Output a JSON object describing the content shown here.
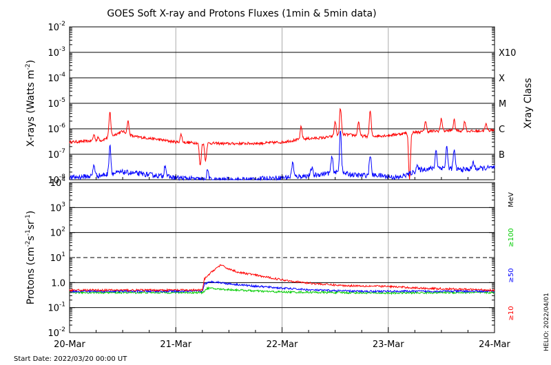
{
  "chart_data": [
    {
      "type": "line",
      "title": "GOES Soft X-ray and Protons Fluxes   (1min & 5min data)",
      "ylabel": "X-rays (Watts m-2)",
      "yscale": "log",
      "ylim": [
        1e-08,
        0.01
      ],
      "yticks": [
        {
          "base": "10",
          "exp": "-2"
        },
        {
          "base": "10",
          "exp": "-3"
        },
        {
          "base": "10",
          "exp": "-4"
        },
        {
          "base": "10",
          "exp": "-5"
        },
        {
          "base": "10",
          "exp": "-6"
        },
        {
          "base": "10",
          "exp": "-7"
        },
        {
          "base": "10",
          "exp": "-8"
        }
      ],
      "right_axis_label": "Xray Class",
      "right_classes": [
        {
          "label": "X10",
          "at": 0.001
        },
        {
          "label": "X",
          "at": 0.0001
        },
        {
          "label": "M",
          "at": 1e-05
        },
        {
          "label": "C",
          "at": 1e-06
        },
        {
          "label": "B",
          "at": 1e-07
        }
      ],
      "series": [
        {
          "color": "#ff0000",
          "baseline": [
            [
              0.0,
              3e-07
            ],
            [
              0.3,
              3.5e-07
            ],
            [
              0.5,
              8e-07
            ],
            [
              0.6,
              5e-07
            ],
            [
              0.8,
              4e-07
            ],
            [
              1.0,
              3e-07
            ],
            [
              1.2,
              2.8e-07
            ],
            [
              1.5,
              2.6e-07
            ],
            [
              1.8,
              2.7e-07
            ],
            [
              2.0,
              3e-07
            ],
            [
              2.2,
              4e-07
            ],
            [
              2.4,
              4.5e-07
            ],
            [
              2.6,
              6e-07
            ],
            [
              2.8,
              5e-07
            ],
            [
              3.0,
              5.5e-07
            ],
            [
              3.2,
              7e-07
            ],
            [
              3.4,
              8e-07
            ],
            [
              3.6,
              8.5e-07
            ],
            [
              3.8,
              8e-07
            ],
            [
              4.0,
              9e-07
            ]
          ],
          "peaks": [
            [
              0.23,
              6e-07
            ],
            [
              0.27,
              4.5e-07
            ],
            [
              0.38,
              4.5e-06
            ],
            [
              0.55,
              2e-06
            ],
            [
              1.05,
              6e-07
            ],
            [
              1.23,
              3.5e-08
            ],
            [
              1.28,
              5.5e-08
            ],
            [
              2.18,
              1.2e-06
            ],
            [
              2.5,
              2e-06
            ],
            [
              2.55,
              6.5e-06
            ],
            [
              2.72,
              2e-06
            ],
            [
              2.83,
              5e-06
            ],
            [
              3.2,
              1e-08
            ],
            [
              3.35,
              2e-06
            ],
            [
              3.5,
              2.5e-06
            ],
            [
              3.62,
              2.2e-06
            ],
            [
              3.72,
              2e-06
            ],
            [
              3.92,
              1.5e-06
            ]
          ]
        },
        {
          "color": "#0000ff",
          "baseline": [
            [
              0.0,
              1.2e-08
            ],
            [
              0.3,
              1.5e-08
            ],
            [
              0.5,
              2e-08
            ],
            [
              0.8,
              1.5e-08
            ],
            [
              1.0,
              1.2e-08
            ],
            [
              1.3,
              1e-08
            ],
            [
              1.6,
              1e-08
            ],
            [
              2.0,
              1.2e-08
            ],
            [
              2.3,
              1.5e-08
            ],
            [
              2.5,
              2e-08
            ],
            [
              2.7,
              1.5e-08
            ],
            [
              2.9,
              1.5e-08
            ],
            [
              3.1,
              1.2e-08
            ],
            [
              3.3,
              2.5e-08
            ],
            [
              3.5,
              3e-08
            ],
            [
              3.7,
              2.5e-08
            ],
            [
              4.0,
              3e-08
            ]
          ],
          "peaks": [
            [
              0.23,
              4e-08
            ],
            [
              0.38,
              2.5e-07
            ],
            [
              0.9,
              4e-08
            ],
            [
              1.3,
              2.5e-08
            ],
            [
              2.1,
              5e-08
            ],
            [
              2.28,
              3e-08
            ],
            [
              2.47,
              8e-08
            ],
            [
              2.55,
              1e-06
            ],
            [
              2.83,
              1e-07
            ],
            [
              3.27,
              3.5e-08
            ],
            [
              3.45,
              1.5e-07
            ],
            [
              3.55,
              2e-07
            ],
            [
              3.62,
              1.5e-07
            ],
            [
              3.8,
              5e-08
            ]
          ]
        }
      ]
    },
    {
      "type": "line",
      "ylabel": "Protons (cm-2s-1sr-1)",
      "yscale": "log",
      "ylim": [
        0.01,
        10000
      ],
      "yticks": [
        {
          "base": "10",
          "exp": "4"
        },
        {
          "base": "10",
          "exp": "3"
        },
        {
          "base": "10",
          "exp": "2"
        },
        {
          "base": "10",
          "exp": "1"
        },
        {
          "base": "1.0",
          "exp": ""
        },
        {
          "base": "10",
          "exp": "-1"
        },
        {
          "base": "10",
          "exp": "-2"
        }
      ],
      "threshold": 10,
      "xlabel": "",
      "xtick_labels": [
        "20-Mar",
        "21-Mar",
        "22-Mar",
        "23-Mar",
        "24-Mar"
      ],
      "xlim": [
        0,
        4
      ],
      "right_labels": [
        {
          "text": "MeV",
          "color": "#000000"
        },
        {
          "text": "≥100",
          "color": "#00cc00"
        },
        {
          "text": "≥50",
          "color": "#0000ff"
        },
        {
          "text": "≥10",
          "color": "#ff0000"
        }
      ],
      "series": [
        {
          "name": "≥10",
          "color": "#ff0000",
          "points": [
            [
              0.0,
              0.5
            ],
            [
              0.5,
              0.5
            ],
            [
              1.0,
              0.5
            ],
            [
              1.25,
              0.5
            ],
            [
              1.27,
              1.4
            ],
            [
              1.35,
              3.0
            ],
            [
              1.42,
              5.0
            ],
            [
              1.5,
              3.5
            ],
            [
              1.6,
              2.5
            ],
            [
              1.7,
              2.2
            ],
            [
              1.8,
              1.8
            ],
            [
              2.0,
              1.3
            ],
            [
              2.2,
              1.0
            ],
            [
              2.4,
              0.85
            ],
            [
              2.6,
              0.75
            ],
            [
              2.7,
              0.75
            ],
            [
              3.0,
              0.7
            ],
            [
              3.3,
              0.6
            ],
            [
              3.6,
              0.55
            ],
            [
              4.0,
              0.5
            ]
          ]
        },
        {
          "name": "≥50",
          "color": "#0000ff",
          "points": [
            [
              0.0,
              0.45
            ],
            [
              0.5,
              0.45
            ],
            [
              1.0,
              0.45
            ],
            [
              1.25,
              0.45
            ],
            [
              1.27,
              0.9
            ],
            [
              1.35,
              1.1
            ],
            [
              1.5,
              0.9
            ],
            [
              1.7,
              0.75
            ],
            [
              2.0,
              0.6
            ],
            [
              2.3,
              0.5
            ],
            [
              2.7,
              0.45
            ],
            [
              3.0,
              0.45
            ],
            [
              3.5,
              0.45
            ],
            [
              4.0,
              0.45
            ]
          ]
        },
        {
          "name": "≥100",
          "color": "#00cc00",
          "points": [
            [
              0.0,
              0.4
            ],
            [
              0.5,
              0.4
            ],
            [
              1.0,
              0.4
            ],
            [
              1.25,
              0.4
            ],
            [
              1.3,
              0.6
            ],
            [
              1.4,
              0.55
            ],
            [
              1.6,
              0.5
            ],
            [
              1.8,
              0.45
            ],
            [
              2.0,
              0.42
            ],
            [
              2.5,
              0.4
            ],
            [
              3.0,
              0.38
            ],
            [
              3.5,
              0.4
            ],
            [
              4.0,
              0.4
            ]
          ]
        }
      ]
    }
  ],
  "footer": {
    "start_date": "Start Date: 2022/03/20 00:00 UT",
    "credit": "HELIO: 2022/04/01"
  }
}
